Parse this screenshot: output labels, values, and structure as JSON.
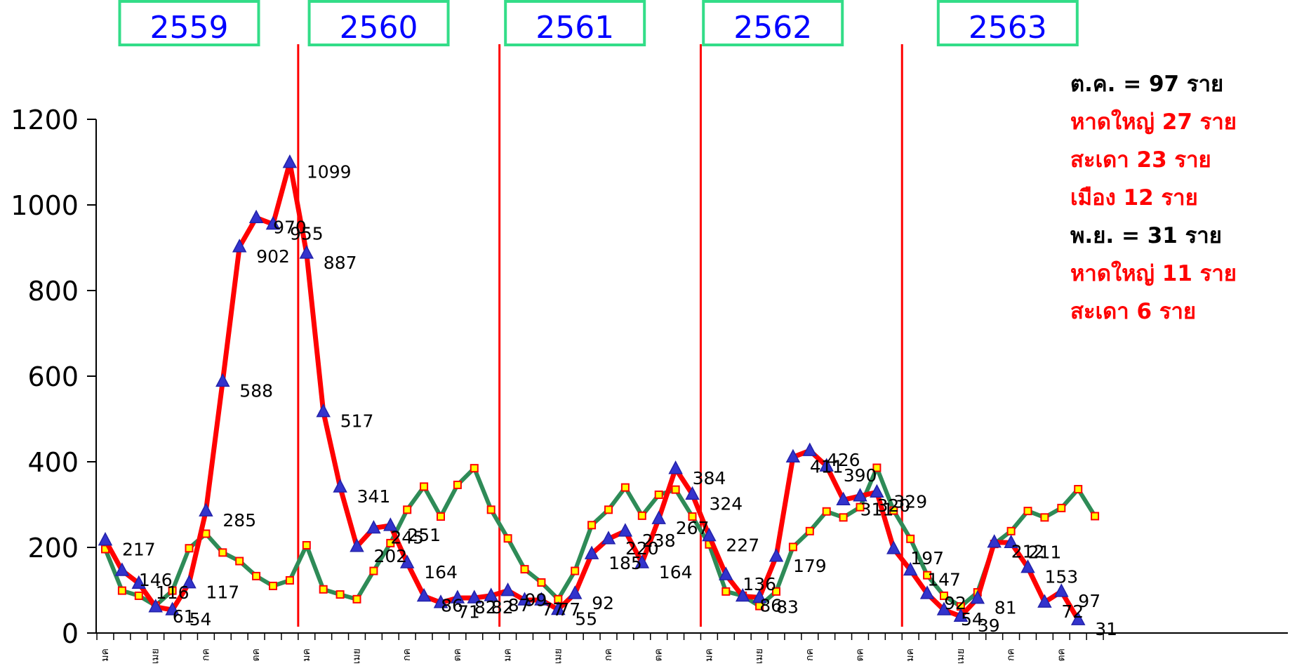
{
  "chart_data": {
    "type": "line",
    "ylim": [
      0,
      1200
    ],
    "yticks": [
      0,
      200,
      400,
      600,
      800,
      1000,
      1200
    ],
    "month_labels": [
      "มค",
      "เมย",
      "กค",
      "ตค",
      "มค",
      "เมย",
      "กค",
      "ตค",
      "มค",
      "เมย",
      "กค",
      "ตค",
      "มค",
      "เมย",
      "กค",
      "ตค",
      "มค",
      "เมย",
      "กค",
      "ตค"
    ],
    "year_labels": [
      "2559",
      "2560",
      "2561",
      "2562",
      "2563"
    ],
    "colors": {
      "red_series": "#ff0000",
      "green_series": "#2e8b57",
      "marker_fill": "#3333cc",
      "box_border": "#33dd88",
      "year_text": "#0000ff",
      "note_red": "#ff0000",
      "note_black": "#000000"
    },
    "series": [
      {
        "values": [
          217,
          146,
          116,
          61,
          54,
          117,
          285,
          588,
          902,
          970,
          955,
          1099,
          887,
          517,
          341,
          202,
          245,
          251,
          164,
          86,
          71,
          82,
          82,
          87,
          99,
          77,
          77,
          55,
          92,
          185,
          220,
          238,
          164,
          267,
          384,
          324,
          227,
          136,
          86,
          83,
          179,
          411,
          426,
          390,
          311,
          320,
          329,
          197,
          147,
          92,
          54,
          39,
          81,
          212,
          211,
          153,
          72,
          97,
          31
        ],
        "data_labels": [
          "217",
          "146",
          "116",
          "61",
          "54",
          "117",
          "285",
          "588",
          "902",
          "970",
          "955",
          "1099",
          "887",
          "517",
          "341",
          "202",
          "245",
          "251",
          "164",
          "86",
          "71",
          "82",
          "82",
          "87",
          "99",
          "77",
          "77",
          "55",
          "92",
          "185",
          "220",
          "238",
          "164",
          "267",
          "384",
          "324",
          "227",
          "136",
          "86",
          "83",
          "179",
          "411",
          "426",
          "390",
          "311",
          "320",
          "329",
          "197",
          "147",
          "92",
          "54",
          "39",
          "81",
          "212",
          "211",
          "153",
          "72",
          "97",
          "31"
        ]
      },
      {
        "values": [
          196,
          99,
          87,
          64,
          99,
          198,
          232,
          188,
          168,
          133,
          110,
          123,
          205,
          102,
          90,
          79,
          145,
          210,
          288,
          342,
          272,
          346,
          385,
          288,
          221,
          149,
          118,
          79,
          145,
          252,
          288,
          340,
          274,
          323,
          335,
          272,
          207,
          97,
          87,
          63,
          97,
          201,
          238,
          284,
          270,
          294,
          386,
          286,
          220,
          135,
          87,
          62,
          95,
          208,
          238,
          285,
          270,
          292,
          336,
          273
        ]
      }
    ],
    "annotations": [
      {
        "text": "ต.ค. = 97 ราย",
        "color": "black"
      },
      {
        "text": "หาดใหญ่ 27 ราย",
        "color": "red"
      },
      {
        "text": "สะเดา 23 ราย",
        "color": "red"
      },
      {
        "text": "เมือง 12 ราย",
        "color": "red"
      },
      {
        "text": "พ.ย. = 31 ราย",
        "color": "black"
      },
      {
        "text": "หาดใหญ่ 11 ราย",
        "color": "red"
      },
      {
        "text": "สะเดา 6 ราย",
        "color": "red"
      }
    ]
  }
}
